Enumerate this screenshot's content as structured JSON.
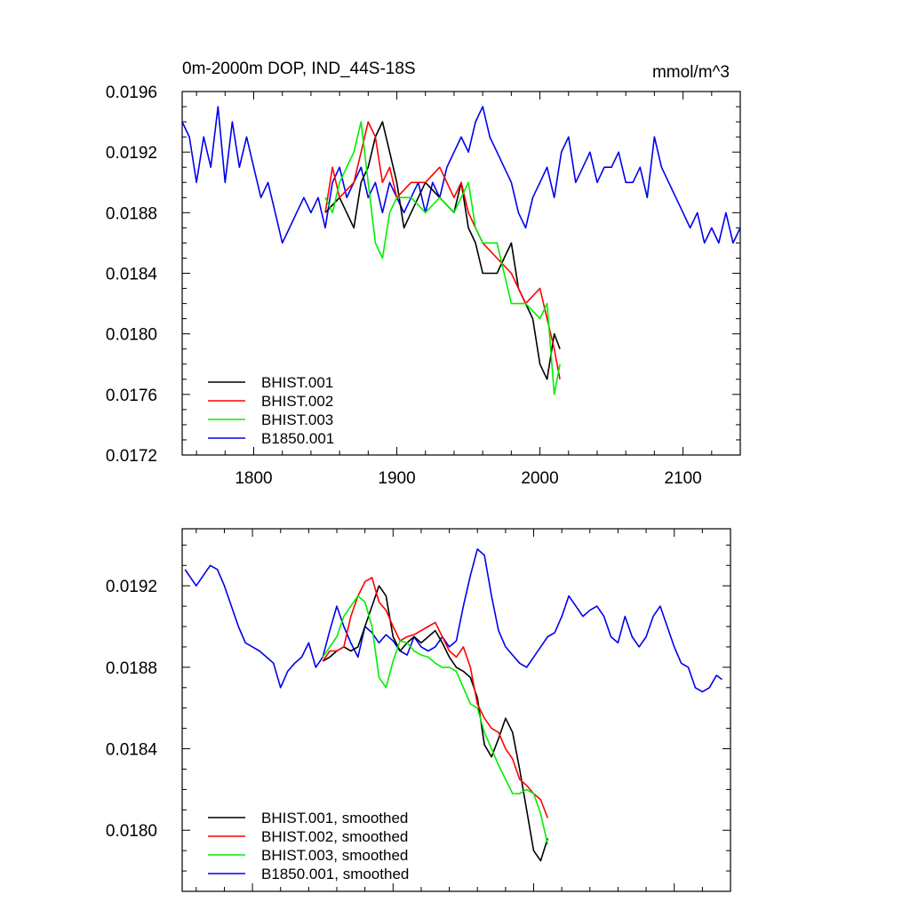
{
  "chart_data": [
    {
      "type": "line",
      "title": "0m-2000m DOP, IND_44S-18S",
      "units": "mmol/m^3",
      "xlim": [
        1750,
        2140
      ],
      "ylim": [
        0.0172,
        0.0196
      ],
      "x_ticks": [
        "1800",
        "1900",
        "2000",
        "2100"
      ],
      "y_ticks": [
        "0.0172",
        "0.0176",
        "0.0180",
        "0.0184",
        "0.0188",
        "0.0192",
        "0.0196"
      ],
      "legend": [
        "BHIST.001",
        "BHIST.002",
        "BHIST.003",
        "B1850.001"
      ],
      "legend_position": "bottom-left",
      "series": [
        {
          "name": "BHIST.001",
          "color": "#000000",
          "x": [
            1850,
            1860,
            1870,
            1875,
            1880,
            1885,
            1890,
            1895,
            1900,
            1905,
            1910,
            1920,
            1930,
            1940,
            1945,
            1950,
            1955,
            1960,
            1970,
            1975,
            1980,
            1985,
            1990,
            1995,
            2000,
            2005,
            2010,
            2014
          ],
          "y": [
            0.0188,
            0.0189,
            0.0187,
            0.019,
            0.0191,
            0.0193,
            0.0194,
            0.0192,
            0.019,
            0.0187,
            0.0188,
            0.019,
            0.0189,
            0.0188,
            0.019,
            0.0187,
            0.0186,
            0.0184,
            0.0184,
            0.0185,
            0.0186,
            0.0183,
            0.0182,
            0.0181,
            0.0178,
            0.0177,
            0.018,
            0.0179
          ]
        },
        {
          "name": "BHIST.002",
          "color": "#ff0000",
          "x": [
            1850,
            1855,
            1860,
            1870,
            1875,
            1880,
            1885,
            1890,
            1895,
            1900,
            1910,
            1920,
            1930,
            1940,
            1945,
            1950,
            1955,
            1960,
            1970,
            1980,
            1985,
            1990,
            2000,
            2005,
            2010,
            2014
          ],
          "y": [
            0.0188,
            0.0191,
            0.0189,
            0.019,
            0.0192,
            0.0194,
            0.0193,
            0.019,
            0.0191,
            0.0189,
            0.019,
            0.019,
            0.0191,
            0.0189,
            0.019,
            0.0188,
            0.0187,
            0.0186,
            0.0185,
            0.0184,
            0.0183,
            0.0182,
            0.0183,
            0.0181,
            0.0179,
            0.0177
          ]
        },
        {
          "name": "BHIST.003",
          "color": "#00ee00",
          "x": [
            1850,
            1855,
            1860,
            1870,
            1875,
            1880,
            1885,
            1890,
            1895,
            1900,
            1910,
            1920,
            1930,
            1940,
            1945,
            1950,
            1955,
            1960,
            1970,
            1975,
            1980,
            1990,
            2000,
            2005,
            2010,
            2014
          ],
          "y": [
            0.0189,
            0.0188,
            0.019,
            0.0192,
            0.0194,
            0.019,
            0.0186,
            0.0185,
            0.0188,
            0.0189,
            0.0189,
            0.0188,
            0.0189,
            0.0188,
            0.0189,
            0.019,
            0.0187,
            0.0186,
            0.0186,
            0.0184,
            0.0182,
            0.0182,
            0.0181,
            0.0182,
            0.0176,
            0.0178
          ]
        },
        {
          "name": "B1850.001",
          "color": "#0000ee",
          "x": [
            1750,
            1755,
            1760,
            1765,
            1770,
            1775,
            1780,
            1785,
            1790,
            1795,
            1800,
            1805,
            1810,
            1815,
            1820,
            1825,
            1830,
            1835,
            1840,
            1845,
            1850,
            1855,
            1860,
            1865,
            1870,
            1875,
            1880,
            1885,
            1890,
            1895,
            1900,
            1905,
            1910,
            1915,
            1920,
            1925,
            1930,
            1935,
            1940,
            1945,
            1950,
            1955,
            1960,
            1965,
            1970,
            1975,
            1980,
            1985,
            1990,
            1995,
            2000,
            2005,
            2010,
            2015,
            2020,
            2025,
            2030,
            2035,
            2040,
            2045,
            2050,
            2055,
            2060,
            2065,
            2070,
            2075,
            2080,
            2085,
            2090,
            2095,
            2100,
            2105,
            2110,
            2115,
            2120,
            2125,
            2130,
            2135,
            2140
          ],
          "y": [
            0.0194,
            0.0193,
            0.019,
            0.0193,
            0.0191,
            0.0195,
            0.019,
            0.0194,
            0.0191,
            0.0193,
            0.0191,
            0.0189,
            0.019,
            0.0188,
            0.0186,
            0.0187,
            0.0188,
            0.0189,
            0.0188,
            0.0189,
            0.0187,
            0.019,
            0.0191,
            0.0189,
            0.019,
            0.0191,
            0.0189,
            0.019,
            0.0188,
            0.019,
            0.0189,
            0.0188,
            0.0189,
            0.019,
            0.0188,
            0.019,
            0.0189,
            0.0191,
            0.0192,
            0.0193,
            0.0192,
            0.0194,
            0.0195,
            0.0193,
            0.0192,
            0.0191,
            0.019,
            0.0188,
            0.0187,
            0.0189,
            0.019,
            0.0191,
            0.0189,
            0.0192,
            0.0193,
            0.019,
            0.0191,
            0.0192,
            0.019,
            0.0191,
            0.0191,
            0.0192,
            0.019,
            0.019,
            0.0191,
            0.0189,
            0.0193,
            0.0191,
            0.019,
            0.0189,
            0.0188,
            0.0187,
            0.0188,
            0.0186,
            0.0187,
            0.0186,
            0.0188,
            0.0186,
            0.0187
          ]
        }
      ]
    },
    {
      "type": "line",
      "title": "",
      "xlim": [
        1750,
        2140
      ],
      "ylim": [
        0.0177,
        0.01948
      ],
      "x_ticks": [],
      "y_ticks": [
        "0.0180",
        "0.0184",
        "0.0188",
        "0.0192"
      ],
      "legend": [
        "BHIST.001, smoothed",
        "BHIST.002, smoothed",
        "BHIST.003, smoothed",
        "B1850.001, smoothed"
      ],
      "legend_position": "bottom-left",
      "series": [
        {
          "name": "BHIST.001, smoothed",
          "color": "#000000",
          "x": [
            1850,
            1855,
            1860,
            1865,
            1870,
            1875,
            1880,
            1885,
            1890,
            1895,
            1900,
            1905,
            1910,
            1915,
            1920,
            1925,
            1930,
            1935,
            1940,
            1945,
            1950,
            1955,
            1960,
            1965,
            1970,
            1975,
            1980,
            1985,
            1990,
            1995,
            2000,
            2005,
            2010
          ],
          "y": [
            0.01883,
            0.01885,
            0.01888,
            0.0189,
            0.01888,
            0.0189,
            0.019,
            0.0191,
            0.0192,
            0.01915,
            0.01895,
            0.01888,
            0.01892,
            0.01895,
            0.01892,
            0.01895,
            0.01898,
            0.01892,
            0.01885,
            0.0188,
            0.01878,
            0.01875,
            0.01865,
            0.01842,
            0.01836,
            0.01845,
            0.01855,
            0.01848,
            0.0183,
            0.0181,
            0.0179,
            0.01785,
            0.01796
          ]
        },
        {
          "name": "BHIST.002, smoothed",
          "color": "#ff0000",
          "x": [
            1850,
            1855,
            1860,
            1865,
            1870,
            1875,
            1880,
            1885,
            1890,
            1895,
            1900,
            1905,
            1910,
            1915,
            1920,
            1925,
            1930,
            1935,
            1940,
            1945,
            1950,
            1955,
            1960,
            1965,
            1970,
            1975,
            1980,
            1985,
            1990,
            1995,
            2000,
            2005,
            2010
          ],
          "y": [
            0.01883,
            0.01888,
            0.01888,
            0.0189,
            0.01905,
            0.01915,
            0.01922,
            0.01924,
            0.01912,
            0.01908,
            0.019,
            0.01893,
            0.01895,
            0.01896,
            0.01898,
            0.019,
            0.01902,
            0.01895,
            0.01888,
            0.01885,
            0.0189,
            0.0188,
            0.01862,
            0.01855,
            0.0185,
            0.01848,
            0.0184,
            0.01835,
            0.01825,
            0.01822,
            0.01818,
            0.01815,
            0.01806
          ]
        },
        {
          "name": "BHIST.003, smoothed",
          "color": "#00ee00",
          "x": [
            1850,
            1855,
            1860,
            1865,
            1870,
            1875,
            1880,
            1885,
            1890,
            1895,
            1900,
            1905,
            1910,
            1915,
            1920,
            1925,
            1930,
            1935,
            1940,
            1945,
            1950,
            1955,
            1960,
            1965,
            1970,
            1975,
            1980,
            1985,
            1990,
            1995,
            2000,
            2005,
            2010
          ],
          "y": [
            0.01885,
            0.0189,
            0.01895,
            0.01905,
            0.0191,
            0.01915,
            0.01912,
            0.019,
            0.01875,
            0.0187,
            0.01883,
            0.01893,
            0.01892,
            0.01888,
            0.01886,
            0.01885,
            0.01882,
            0.0188,
            0.0188,
            0.01878,
            0.0187,
            0.01862,
            0.0186,
            0.01848,
            0.0184,
            0.01832,
            0.01825,
            0.01818,
            0.01818,
            0.0182,
            0.01818,
            0.01808,
            0.01793
          ]
        },
        {
          "name": "B1850.001, smoothed",
          "color": "#0000ee",
          "x": [
            1752,
            1760,
            1765,
            1770,
            1775,
            1780,
            1785,
            1790,
            1795,
            1800,
            1805,
            1810,
            1815,
            1820,
            1825,
            1830,
            1835,
            1840,
            1845,
            1850,
            1855,
            1860,
            1865,
            1870,
            1875,
            1880,
            1885,
            1890,
            1895,
            1900,
            1905,
            1910,
            1915,
            1920,
            1925,
            1930,
            1935,
            1940,
            1945,
            1950,
            1955,
            1960,
            1965,
            1970,
            1975,
            1980,
            1985,
            1990,
            1995,
            2000,
            2005,
            2010,
            2015,
            2020,
            2025,
            2030,
            2035,
            2040,
            2045,
            2050,
            2055,
            2060,
            2065,
            2070,
            2075,
            2080,
            2085,
            2090,
            2095,
            2100,
            2105,
            2110,
            2115,
            2120,
            2125,
            2130,
            2134
          ],
          "y": [
            0.01928,
            0.0192,
            0.01925,
            0.0193,
            0.01928,
            0.0192,
            0.0191,
            0.019,
            0.01892,
            0.0189,
            0.01888,
            0.01885,
            0.01882,
            0.0187,
            0.01878,
            0.01882,
            0.01885,
            0.01892,
            0.0188,
            0.01885,
            0.01898,
            0.0191,
            0.019,
            0.01892,
            0.01885,
            0.019,
            0.01897,
            0.01892,
            0.01896,
            0.01893,
            0.01888,
            0.01886,
            0.01895,
            0.0189,
            0.01888,
            0.0189,
            0.01895,
            0.0189,
            0.01893,
            0.0191,
            0.01925,
            0.01938,
            0.01935,
            0.01915,
            0.01898,
            0.0189,
            0.01886,
            0.01882,
            0.0188,
            0.01885,
            0.0189,
            0.01895,
            0.01897,
            0.01905,
            0.01915,
            0.0191,
            0.01905,
            0.01908,
            0.0191,
            0.01905,
            0.01895,
            0.01892,
            0.01905,
            0.01895,
            0.0189,
            0.01895,
            0.01905,
            0.0191,
            0.019,
            0.0189,
            0.01882,
            0.0188,
            0.0187,
            0.01868,
            0.0187,
            0.01876,
            0.01874
          ]
        }
      ]
    }
  ]
}
